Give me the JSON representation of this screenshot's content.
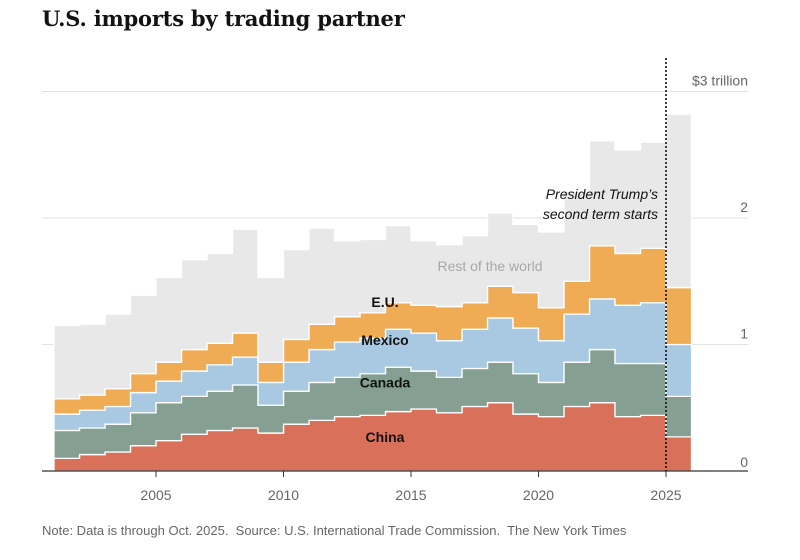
{
  "chart_data": {
    "type": "area",
    "title": "U.S. imports by trading partner",
    "note": "Note: Data is through Oct. 2025.  Source: U.S. International Trade Commission.  The New York Times",
    "x_unit": "year",
    "years": [
      2001,
      2002,
      2003,
      2004,
      2005,
      2006,
      2007,
      2008,
      2009,
      2010,
      2011,
      2012,
      2013,
      2014,
      2015,
      2016,
      2017,
      2018,
      2019,
      2020,
      2021,
      2022,
      2023,
      2024,
      2025
    ],
    "series": [
      {
        "name": "China",
        "color": "#d9705a",
        "values": [
          0.1,
          0.13,
          0.15,
          0.2,
          0.24,
          0.29,
          0.32,
          0.34,
          0.3,
          0.37,
          0.4,
          0.43,
          0.44,
          0.47,
          0.49,
          0.46,
          0.51,
          0.54,
          0.45,
          0.43,
          0.51,
          0.54,
          0.43,
          0.44,
          0.27
        ]
      },
      {
        "name": "Canada",
        "color": "#85a093",
        "values": [
          0.22,
          0.21,
          0.22,
          0.26,
          0.3,
          0.3,
          0.31,
          0.34,
          0.22,
          0.26,
          0.3,
          0.31,
          0.33,
          0.35,
          0.3,
          0.28,
          0.3,
          0.32,
          0.32,
          0.27,
          0.35,
          0.42,
          0.42,
          0.41,
          0.32
        ]
      },
      {
        "name": "Mexico",
        "color": "#a9c9e3",
        "values": [
          0.13,
          0.14,
          0.14,
          0.16,
          0.17,
          0.2,
          0.21,
          0.22,
          0.18,
          0.23,
          0.26,
          0.28,
          0.28,
          0.3,
          0.3,
          0.29,
          0.31,
          0.35,
          0.36,
          0.33,
          0.38,
          0.4,
          0.46,
          0.48,
          0.41
        ]
      },
      {
        "name": "E.U.",
        "color": "#f0ac55",
        "values": [
          0.12,
          0.12,
          0.14,
          0.15,
          0.15,
          0.17,
          0.17,
          0.19,
          0.16,
          0.18,
          0.2,
          0.2,
          0.2,
          0.21,
          0.22,
          0.27,
          0.21,
          0.25,
          0.28,
          0.26,
          0.26,
          0.42,
          0.41,
          0.43,
          0.45
        ]
      },
      {
        "name": "Rest of the world",
        "color": "#e9e8e8",
        "values": [
          0.58,
          0.56,
          0.59,
          0.62,
          0.67,
          0.71,
          0.71,
          0.82,
          0.67,
          0.71,
          0.76,
          0.6,
          0.58,
          0.61,
          0.51,
          0.49,
          0.53,
          0.58,
          0.54,
          0.6,
          0.71,
          0.83,
          0.82,
          0.84,
          1.37
        ]
      }
    ],
    "ylim": [
      0,
      3.2
    ],
    "y_ticks": [
      {
        "value": 0,
        "label": "0"
      },
      {
        "value": 1,
        "label": "1"
      },
      {
        "value": 2,
        "label": "2"
      },
      {
        "value": 3,
        "label": "$3 trillion"
      }
    ],
    "x_ticks": [
      2005,
      2010,
      2015,
      2020,
      2025
    ],
    "annotation": {
      "year": 2025,
      "lines": [
        "President Trump’s",
        "second term starts"
      ]
    },
    "grid": true
  }
}
